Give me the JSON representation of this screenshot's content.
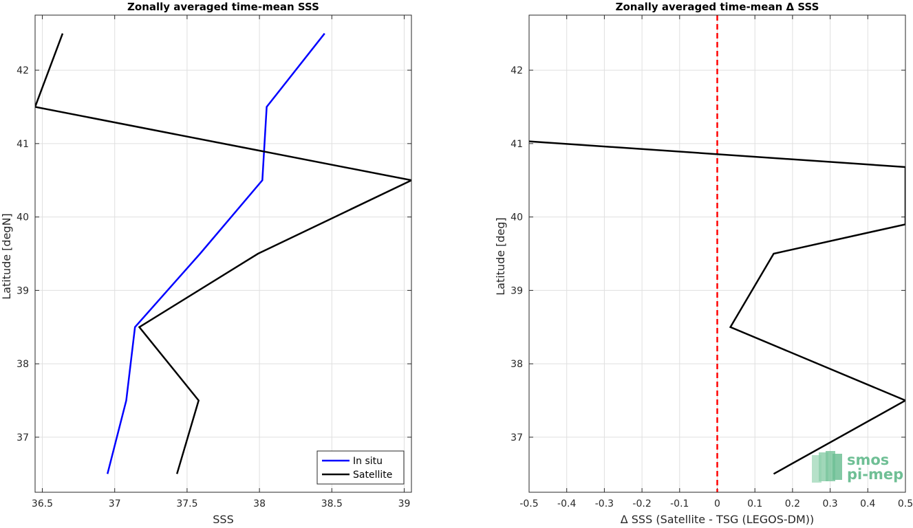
{
  "chart_data": [
    {
      "type": "line",
      "title": "Zonally averaged time-mean SSS",
      "xlabel": "SSS",
      "ylabel": "Latitude [degN]",
      "xlim": [
        36.45,
        39.05
      ],
      "ylim": [
        36.25,
        42.75
      ],
      "xticks": [
        36.5,
        37,
        37.5,
        38,
        38.5,
        39
      ],
      "xtick_labels": [
        "36.5",
        "37",
        "37.5",
        "38",
        "38.5",
        "39"
      ],
      "yticks": [
        37,
        38,
        39,
        40,
        41,
        42
      ],
      "ytick_labels": [
        "37",
        "38",
        "39",
        "40",
        "41",
        "42"
      ],
      "grid": true,
      "legend_position": "bottom-right",
      "series": [
        {
          "name": "In situ",
          "color": "#0000ff",
          "x": [
            36.95,
            37.08,
            37.14,
            37.59,
            38.02,
            38.05,
            38.45
          ],
          "y": [
            36.5,
            37.5,
            38.5,
            39.5,
            40.5,
            41.5,
            42.5
          ]
        },
        {
          "name": "Satellite",
          "color": "#000000",
          "x": [
            37.43,
            37.58,
            37.17,
            37.99,
            39.05,
            36.45,
            36.64
          ],
          "y": [
            36.5,
            37.5,
            38.5,
            39.5,
            40.5,
            41.5,
            42.5
          ]
        }
      ]
    },
    {
      "type": "line",
      "title": "Zonally averaged time-mean Δ SSS",
      "xlabel": "Δ SSS (Satellite - TSG (LEGOS-DM))",
      "ylabel": "Latitude [deg]",
      "xlim": [
        -0.5,
        0.5
      ],
      "ylim": [
        36.25,
        42.75
      ],
      "xticks": [
        -0.5,
        -0.4,
        -0.3,
        -0.2,
        -0.1,
        0,
        0.1,
        0.2,
        0.3,
        0.4,
        0.5
      ],
      "xtick_labels": [
        "-0.5",
        "-0.4",
        "-0.3",
        "-0.2",
        "-0.1",
        "0",
        "0.1",
        "0.2",
        "0.3",
        "0.4",
        "0.5"
      ],
      "yticks": [
        37,
        38,
        39,
        40,
        41,
        42
      ],
      "ytick_labels": [
        "37",
        "38",
        "39",
        "40",
        "41",
        "42"
      ],
      "grid": true,
      "reference_line": {
        "x": 0,
        "color": "#ff0000",
        "style": "dashed"
      },
      "series": [
        {
          "color": "#000000",
          "x": [
            0.15,
            0.5,
            0.035,
            0.15,
            0.5,
            0.5,
            -0.5
          ],
          "y": [
            36.5,
            37.5,
            38.5,
            39.5,
            39.9,
            40.68,
            41.03
          ]
        }
      ]
    }
  ],
  "logo": {
    "line1": "smos",
    "line2": "pi-mep",
    "color": "#6fbf95"
  }
}
